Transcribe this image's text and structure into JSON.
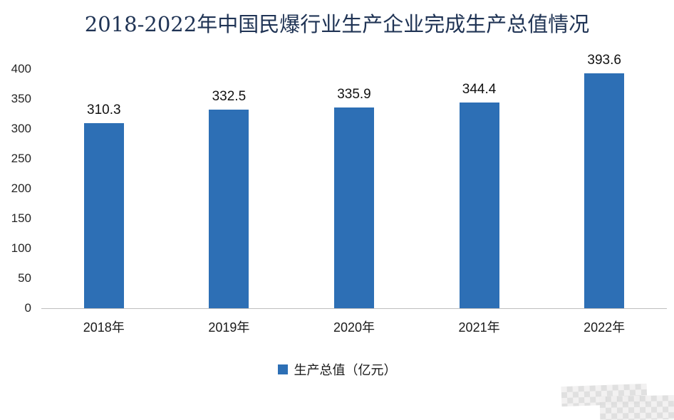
{
  "chart_data": {
    "type": "bar",
    "title": "2018-2022年中国民爆行业生产企业完成生产总值情况",
    "categories": [
      "2018年",
      "2019年",
      "2020年",
      "2021年",
      "2022年"
    ],
    "values": [
      310.3,
      332.5,
      335.9,
      344.4,
      393.6
    ],
    "xlabel": "",
    "ylabel": "",
    "ylim": [
      0,
      400
    ],
    "yticks": [
      0,
      50,
      100,
      150,
      200,
      250,
      300,
      350,
      400
    ],
    "grid": false,
    "legend": [
      "生产总值（亿元）"
    ],
    "legend_position": "bottom",
    "bar_color": "#2d6fb5",
    "axis_line_color": "#bfbfbf"
  }
}
